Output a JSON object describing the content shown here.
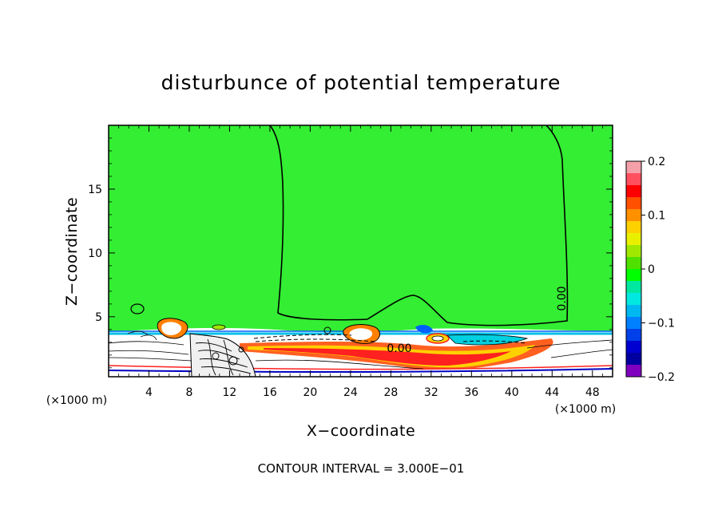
{
  "chart_data": {
    "type": "contour",
    "title": "disturbunce of potential temperature",
    "xlabel": "X−coordinate",
    "ylabel": "Z−coordinate",
    "xunit_left": "(×1000 m)",
    "xunit_right": "(×1000 m)",
    "xlim": [
      0,
      50
    ],
    "ylim": [
      0.3,
      20
    ],
    "xticks": [
      4,
      8,
      12,
      16,
      20,
      24,
      28,
      32,
      36,
      40,
      44,
      48
    ],
    "yticks": [
      5,
      10,
      15
    ],
    "colorbar": {
      "range": [
        -0.2,
        0.2
      ],
      "ticks": [
        "0.2",
        "0.1",
        "0",
        "−0.1",
        "−0.2"
      ],
      "colors": [
        "#f4a0a8",
        "#ff5060",
        "#ff0000",
        "#ff5000",
        "#ff9000",
        "#ffd000",
        "#e8f000",
        "#a0e800",
        "#50e000",
        "#00ff00",
        "#00e8a0",
        "#00e8e0",
        "#00b8f0",
        "#0080ff",
        "#0040e8",
        "#0000d0",
        "#0000a0",
        "#8000c0"
      ]
    },
    "contour_labels": [
      "0.00",
      "0.00"
    ],
    "background_value_color": "#33ee33",
    "note": "CONTOUR INTERVAL = 3.000E−01"
  }
}
